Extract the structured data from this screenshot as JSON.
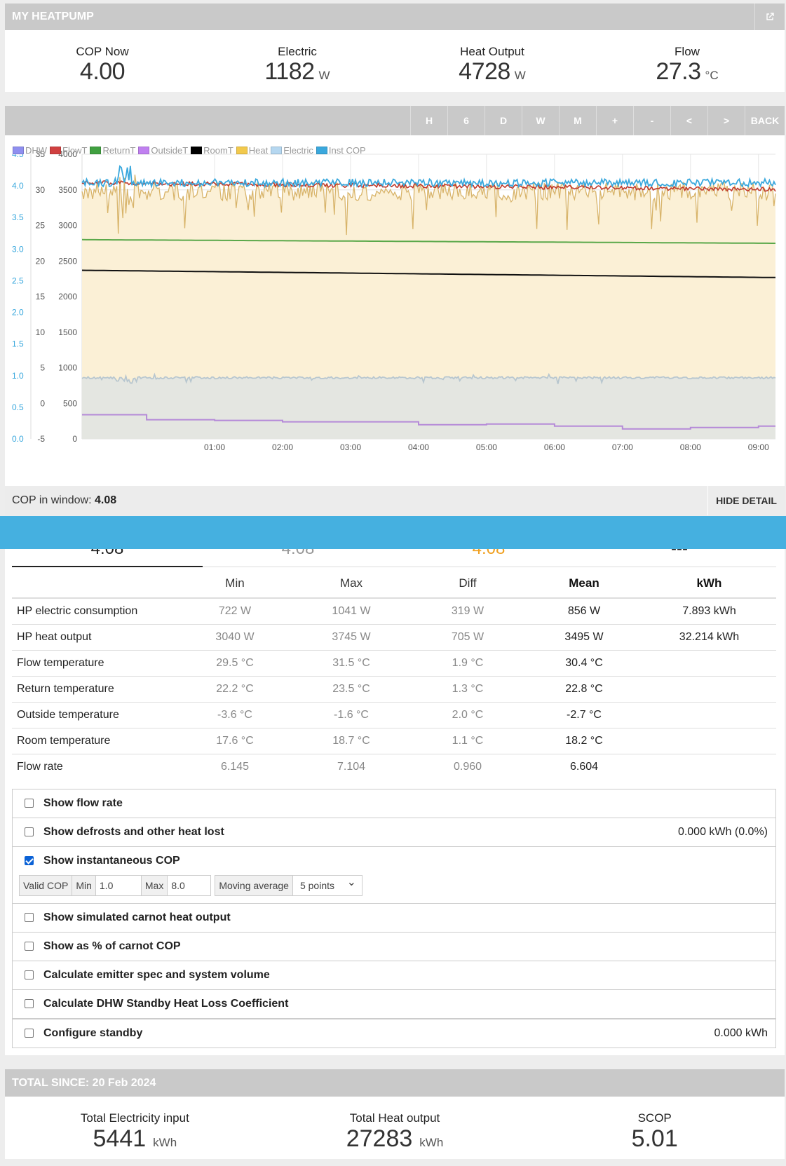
{
  "header": {
    "title": "MY HEATPUMP",
    "external_icon": "external-link-icon"
  },
  "live": [
    {
      "label": "COP Now",
      "value": "4.00",
      "unit": ""
    },
    {
      "label": "Electric",
      "value": "1182",
      "unit": "W"
    },
    {
      "label": "Heat Output",
      "value": "4728",
      "unit": "W"
    },
    {
      "label": "Flow",
      "value": "27.3",
      "unit": "°C"
    }
  ],
  "toolbar": {
    "buttons": [
      "H",
      "6",
      "D",
      "W",
      "M",
      "+",
      "-",
      "<",
      ">",
      "BACK"
    ]
  },
  "legend": [
    {
      "name": "DHW",
      "color": "#8f8ff0"
    },
    {
      "name": "FlowT",
      "color": "#d04040"
    },
    {
      "name": "ReturnT",
      "color": "#40a040"
    },
    {
      "name": "OutsideT",
      "color": "#c080f0"
    },
    {
      "name": "RoomT",
      "color": "#000000"
    },
    {
      "name": "Heat",
      "color": "#f2c94c"
    },
    {
      "name": "Electric",
      "color": "#b5d7f0"
    },
    {
      "name": "Inst COP",
      "color": "#3aa8dd"
    }
  ],
  "chart_data": {
    "type": "line",
    "x_ticks": [
      "01:00",
      "02:00",
      "03:00",
      "04:00",
      "05:00",
      "06:00",
      "07:00",
      "08:00",
      "09:00"
    ],
    "y_axes": {
      "cop": {
        "ticks": [
          "4.5",
          "4.0",
          "3.5",
          "3.0",
          "2.5",
          "2.0",
          "1.5",
          "1.0",
          "0.5",
          "0.0"
        ],
        "range": [
          0,
          4.5
        ],
        "color": "#3aa8dd"
      },
      "temperature": {
        "ticks": [
          "35",
          "30",
          "25",
          "20",
          "15",
          "10",
          "5",
          "0",
          "-5"
        ],
        "range": [
          -5,
          35
        ]
      },
      "power": {
        "ticks": [
          "4000",
          "3500",
          "3000",
          "2500",
          "2000",
          "1500",
          "1000",
          "500",
          "0"
        ],
        "range": [
          0,
          4000
        ]
      }
    },
    "series": [
      {
        "name": "Heat",
        "axis": "power",
        "approx": "fluctuates ~3400-3700 W, dips near 3000 W around 00:35",
        "color": "#f2c94c"
      },
      {
        "name": "Electric",
        "axis": "power",
        "approx": "~850 W steady",
        "color": "#b5d7f0"
      },
      {
        "name": "FlowT",
        "axis": "temperature",
        "approx": "~31 to 30 °C",
        "color": "#d04040"
      },
      {
        "name": "ReturnT",
        "axis": "temperature",
        "approx": "23.0 falling to 22.5 °C",
        "color": "#40a040"
      },
      {
        "name": "RoomT",
        "axis": "temperature",
        "approx": "18.7 falling to 17.7 °C",
        "color": "#000000"
      },
      {
        "name": "OutsideT",
        "axis": "temperature",
        "approx": "-1.6 stepping down to -3.6 °C",
        "color": "#c080f0"
      },
      {
        "name": "Inst COP",
        "axis": "cop",
        "approx": "~4.0-4.1",
        "color": "#3aa8dd"
      }
    ],
    "grid": true
  },
  "cop_window": {
    "label": "COP in window:",
    "value": "4.08",
    "hide_button": "HIDE DETAIL"
  },
  "tabs": [
    {
      "value": "4.08",
      "color": "#222222"
    },
    {
      "value": "4.08",
      "color": "#999999"
    },
    {
      "value": "4.08",
      "color": "#f0a020"
    },
    {
      "value": "---",
      "color": "#222222"
    }
  ],
  "table": {
    "headers": [
      "",
      "Min",
      "Max",
      "Diff",
      "Mean",
      "kWh"
    ],
    "rows": [
      [
        "HP electric consumption",
        "722 W",
        "1041 W",
        "319 W",
        "856 W",
        "7.893 kWh"
      ],
      [
        "HP heat output",
        "3040 W",
        "3745 W",
        "705 W",
        "3495 W",
        "32.214 kWh"
      ],
      [
        "Flow temperature",
        "29.5 °C",
        "31.5 °C",
        "1.9 °C",
        "30.4 °C",
        ""
      ],
      [
        "Return temperature",
        "22.2 °C",
        "23.5 °C",
        "1.3 °C",
        "22.8 °C",
        ""
      ],
      [
        "Outside temperature",
        "-3.6 °C",
        "-1.6 °C",
        "2.0 °C",
        "-2.7 °C",
        ""
      ],
      [
        "Room temperature",
        "17.6 °C",
        "18.7 °C",
        "1.1 °C",
        "18.2 °C",
        ""
      ],
      [
        "Flow rate",
        "6.145",
        "7.104",
        "0.960",
        "6.604",
        ""
      ]
    ]
  },
  "options": {
    "flow_rate": {
      "label": "Show flow rate",
      "checked": false
    },
    "defrosts": {
      "label": "Show defrosts and other heat lost",
      "checked": false,
      "value": "0.000 kWh (0.0%)"
    },
    "inst_cop": {
      "label": "Show instantaneous COP",
      "checked": true,
      "valid_cop": "Valid COP",
      "min_label": "Min",
      "min_value": "1.0",
      "max_label": "Max",
      "max_value": "8.0",
      "moving_avg_label": "Moving average",
      "moving_avg_value": "5 points"
    },
    "carnot_heat": {
      "label": "Show simulated carnot heat output",
      "checked": false
    },
    "carnot_pct": {
      "label": "Show as % of carnot COP",
      "checked": false
    },
    "emitter": {
      "label": "Calculate emitter spec and system volume",
      "checked": false
    },
    "dhw_loss": {
      "label": "Calculate DHW Standby Heat Loss Coefficient",
      "checked": false
    },
    "standby": {
      "label": "Configure standby",
      "checked": false,
      "value": "0.000 kWh"
    }
  },
  "totals": {
    "title": "TOTAL SINCE: 20 Feb 2024",
    "items": [
      {
        "label": "Total Electricity input",
        "value": "5441",
        "unit": "kWh"
      },
      {
        "label": "Total Heat output",
        "value": "27283",
        "unit": "kWh"
      },
      {
        "label": "SCOP",
        "value": "5.01",
        "unit": ""
      }
    ]
  }
}
